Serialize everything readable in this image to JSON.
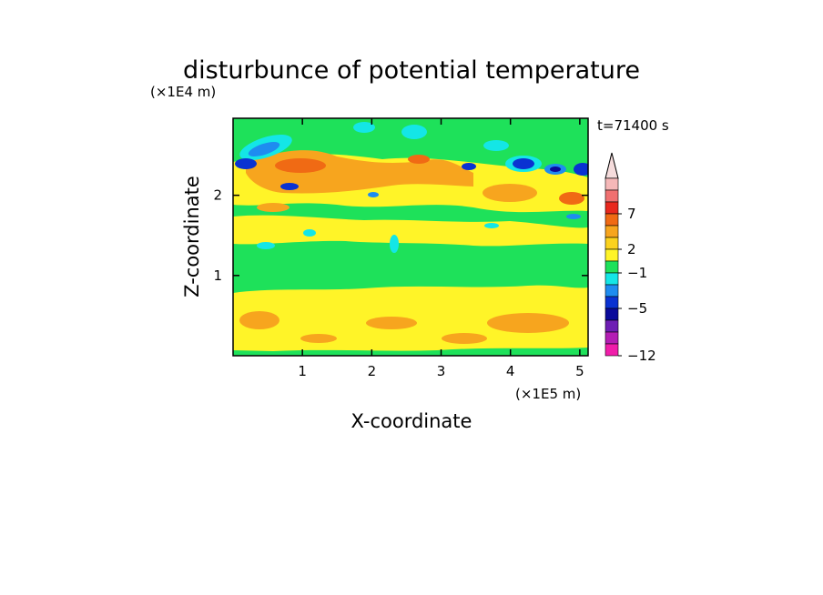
{
  "chart_data": {
    "type": "heatmap",
    "title": "disturbunce of potential temperature",
    "xlabel": "X-coordinate",
    "ylabel": "Z-coordinate",
    "x_unit": "(×1E5 m)",
    "y_unit": "(×1E4 m)",
    "time_label": "t=71400 s",
    "xlim": [
      0,
      5.12
    ],
    "ylim": [
      0,
      2.96
    ],
    "x_ticks": [
      "1",
      "2",
      "3",
      "4",
      "5"
    ],
    "y_ticks": [
      "1",
      "2"
    ],
    "colorbar_labels": [
      "7",
      "2",
      "−1",
      "−5",
      "−12"
    ],
    "colorbar_levels": [
      {
        "color": "#f5b8b8"
      },
      {
        "color": "#f07070"
      },
      {
        "color": "#e8281e"
      },
      {
        "color": "#f06a14"
      },
      {
        "color": "#f7a51e"
      },
      {
        "color": "#fbd21e"
      },
      {
        "color": "#fff428"
      },
      {
        "color": "#1ee15a"
      },
      {
        "color": "#14e6e6"
      },
      {
        "color": "#1e8cf0"
      },
      {
        "color": "#0a32d2"
      },
      {
        "color": "#0a0a9b"
      },
      {
        "color": "#6e1eb4"
      },
      {
        "color": "#b41eb4"
      },
      {
        "color": "#f01eaa"
      }
    ],
    "layers": [
      {
        "z": [
          0.02,
          0.12
        ],
        "value": "green",
        "color": "#1ee15a"
      },
      {
        "z": [
          0.12,
          0.9
        ],
        "value": "0 to 2 (yellow/orange)",
        "color": "#fff428"
      },
      {
        "z": [
          0.9,
          1.5
        ],
        "value": "around 0 (green)",
        "color": "#1ee15a"
      },
      {
        "z": [
          1.5,
          1.9
        ],
        "value": "0 to 2 (yellow)",
        "color": "#fff428"
      },
      {
        "z": [
          1.9,
          2.1
        ],
        "value": "around 0 (green)",
        "color": "#1ee15a"
      },
      {
        "z": [
          2.1,
          2.6
        ],
        "value": "2 to 4 (orange)",
        "color": "#f7a51e"
      },
      {
        "z": [
          2.6,
          2.96
        ],
        "value": "−1 to −5 (cyan/blue)",
        "color": "#14e6e6"
      }
    ]
  }
}
